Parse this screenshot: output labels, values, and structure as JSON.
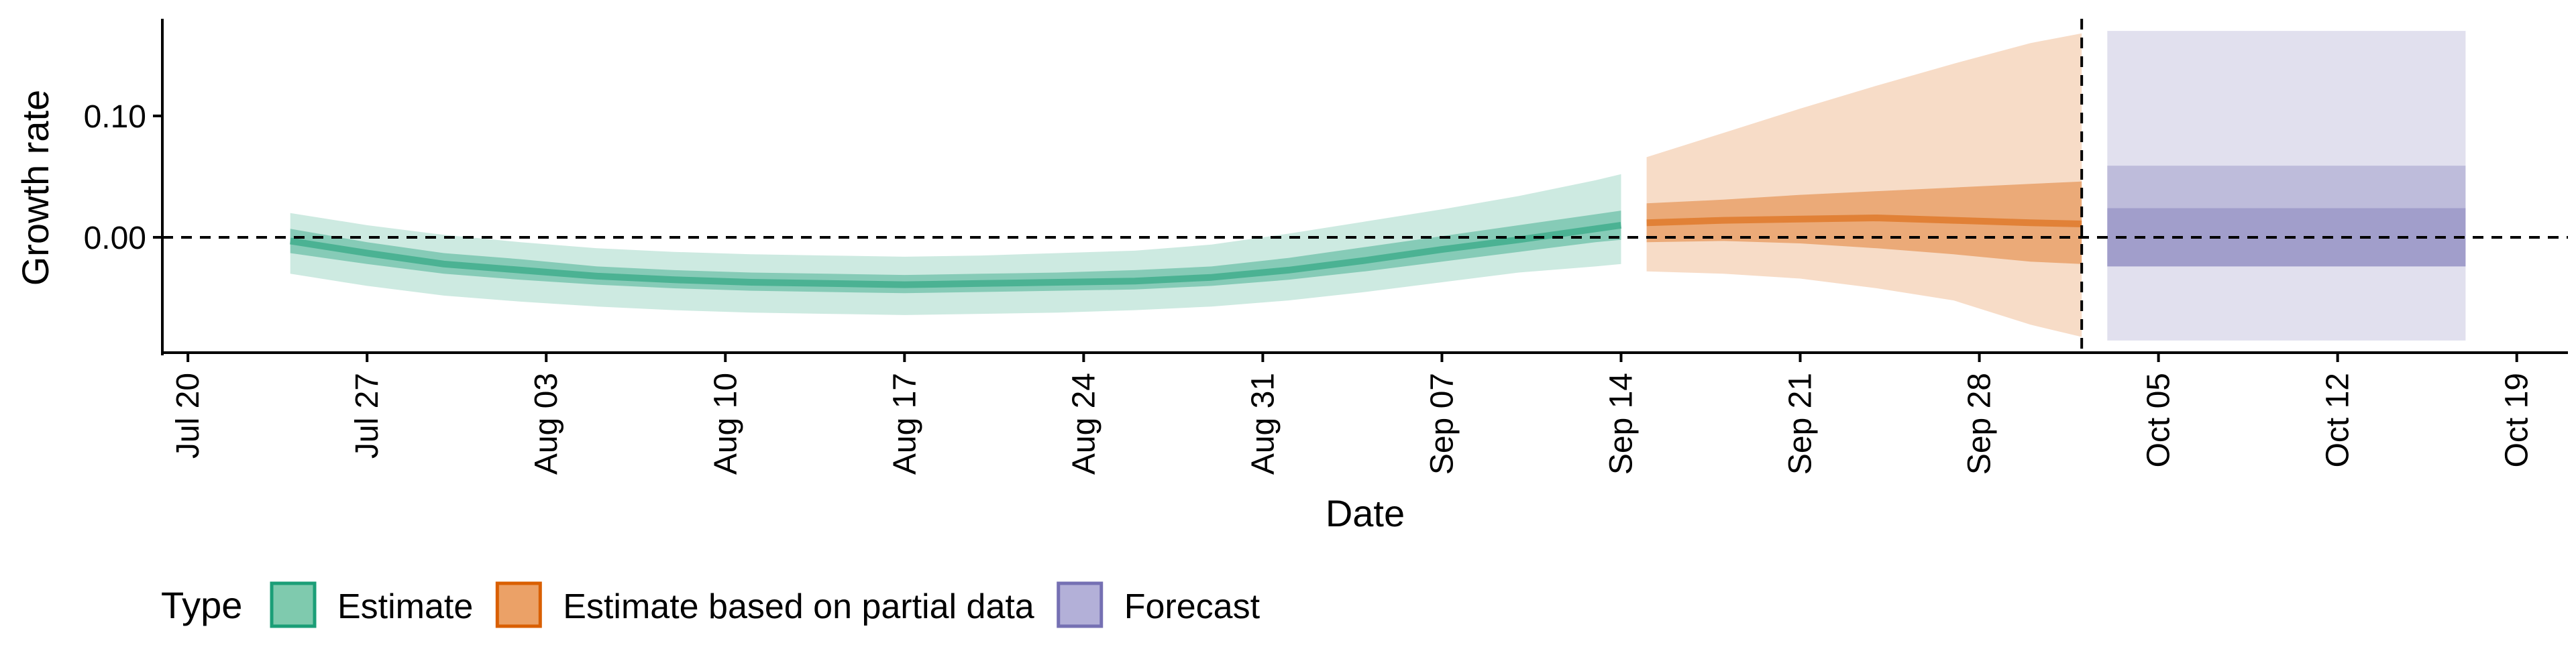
{
  "chart_data": {
    "type": "area",
    "xlabel": "Date",
    "ylabel": "Growth rate",
    "x_range": [
      "2020-07-19",
      "2020-10-21"
    ],
    "ylim": [
      -0.095,
      0.18
    ],
    "y_ticks": [
      0.0,
      0.1
    ],
    "y_tick_labels": [
      "0.00",
      "0.10"
    ],
    "x_ticks": [
      "2020-07-20",
      "2020-07-27",
      "2020-08-03",
      "2020-08-10",
      "2020-08-17",
      "2020-08-24",
      "2020-08-31",
      "2020-09-07",
      "2020-09-14",
      "2020-09-21",
      "2020-09-28",
      "2020-10-05",
      "2020-10-12",
      "2020-10-19"
    ],
    "x_tick_labels": [
      "Jul 20",
      "Jul 27",
      "Aug 03",
      "Aug 10",
      "Aug 17",
      "Aug 24",
      "Aug 31",
      "Sep 07",
      "Sep 14",
      "Sep 21",
      "Sep 28",
      "Oct 05",
      "Oct 12",
      "Oct 19"
    ],
    "reference_lines": {
      "horizontal_y": 0.0,
      "vertical_x": "2020-10-02"
    },
    "grid": false,
    "legend": {
      "title": "Type",
      "position": "bottom-left",
      "items": [
        {
          "label": "Estimate",
          "fill": "#7fcaae",
          "stroke": "#1b9e77"
        },
        {
          "label": "Estimate based on partial data",
          "fill": "#eba167",
          "stroke": "#d95f02"
        },
        {
          "label": "Forecast",
          "fill": "#b3b0d8",
          "stroke": "#7570b3"
        }
      ]
    },
    "series": [
      {
        "name": "Estimate",
        "colors": {
          "outer": "#1b9e77",
          "inner": "#1b9e77",
          "median": "#1b9e77"
        },
        "x": [
          "2020-07-24",
          "2020-07-27",
          "2020-07-30",
          "2020-08-02",
          "2020-08-05",
          "2020-08-08",
          "2020-08-11",
          "2020-08-14",
          "2020-08-17",
          "2020-08-20",
          "2020-08-23",
          "2020-08-26",
          "2020-08-29",
          "2020-09-01",
          "2020-09-04",
          "2020-09-07",
          "2020-09-10",
          "2020-09-13",
          "2020-09-14"
        ],
        "median": [
          -0.003,
          -0.013,
          -0.022,
          -0.027,
          -0.032,
          -0.035,
          -0.037,
          -0.038,
          -0.039,
          -0.038,
          -0.037,
          -0.036,
          -0.033,
          -0.027,
          -0.019,
          -0.01,
          -0.002,
          0.007,
          0.01
        ],
        "inner_lower": [
          -0.013,
          -0.022,
          -0.03,
          -0.035,
          -0.039,
          -0.042,
          -0.044,
          -0.045,
          -0.046,
          -0.045,
          -0.044,
          -0.043,
          -0.04,
          -0.035,
          -0.028,
          -0.02,
          -0.012,
          -0.004,
          -0.002
        ],
        "inner_upper": [
          0.007,
          -0.004,
          -0.013,
          -0.018,
          -0.024,
          -0.027,
          -0.029,
          -0.03,
          -0.031,
          -0.03,
          -0.029,
          -0.027,
          -0.024,
          -0.017,
          -0.008,
          0.001,
          0.01,
          0.019,
          0.022
        ],
        "outer_lower": [
          -0.03,
          -0.04,
          -0.048,
          -0.053,
          -0.057,
          -0.06,
          -0.062,
          -0.063,
          -0.064,
          -0.063,
          -0.062,
          -0.06,
          -0.057,
          -0.052,
          -0.045,
          -0.037,
          -0.029,
          -0.024,
          -0.022
        ],
        "outer_upper": [
          0.02,
          0.01,
          0.002,
          -0.004,
          -0.009,
          -0.012,
          -0.014,
          -0.015,
          -0.016,
          -0.015,
          -0.013,
          -0.011,
          -0.006,
          0.003,
          0.013,
          0.023,
          0.034,
          0.047,
          0.052
        ]
      },
      {
        "name": "Estimate based on partial data",
        "colors": {
          "outer": "#d95f02",
          "inner": "#d95f02",
          "median": "#d95f02"
        },
        "x": [
          "2020-09-15",
          "2020-09-18",
          "2020-09-21",
          "2020-09-24",
          "2020-09-27",
          "2020-09-30",
          "2020-10-02"
        ],
        "median": [
          0.012,
          0.014,
          0.015,
          0.016,
          0.014,
          0.012,
          0.011
        ],
        "inner_lower": [
          -0.004,
          -0.003,
          -0.005,
          -0.009,
          -0.014,
          -0.02,
          -0.022
        ],
        "inner_upper": [
          0.028,
          0.031,
          0.035,
          0.038,
          0.041,
          0.044,
          0.046
        ],
        "outer_lower": [
          -0.028,
          -0.03,
          -0.034,
          -0.042,
          -0.052,
          -0.072,
          -0.082
        ],
        "outer_upper": [
          0.066,
          0.086,
          0.106,
          0.125,
          0.143,
          0.16,
          0.168
        ]
      },
      {
        "name": "Forecast",
        "colors": {
          "outer": "#7570b3",
          "inner": "#7570b3",
          "median": "#7570b3"
        },
        "x": [
          "2020-10-03",
          "2020-10-17"
        ],
        "median": [
          0.001,
          0.001
        ],
        "inner_lower": [
          -0.024,
          -0.024
        ],
        "inner_upper": [
          0.024,
          0.024
        ],
        "mid_lower": [
          -0.024,
          -0.024
        ],
        "mid_upper": [
          0.059,
          0.059
        ],
        "outer_lower": [
          -0.085,
          -0.085
        ],
        "outer_upper": [
          0.17,
          0.17
        ]
      }
    ]
  }
}
